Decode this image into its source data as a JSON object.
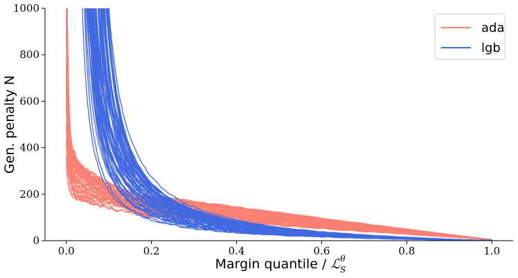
{
  "chart_data": {
    "type": "line",
    "xlabel": "Margin quantile / ",
    "xlabel_math": "ℒ",
    "xlabel_sub": "S",
    "xlabel_sup": "θ",
    "ylabel": "Gen. penalty N",
    "xlim": [
      -0.05,
      1.05
    ],
    "ylim": [
      0,
      1000
    ],
    "x_ticks": [
      0.0,
      0.2,
      0.4,
      0.6,
      0.8,
      1.0
    ],
    "x_tick_labels": [
      "0.0",
      "0.2",
      "0.4",
      "0.6",
      "0.8",
      "1.0"
    ],
    "y_ticks": [
      0,
      200,
      400,
      600,
      800,
      1000
    ],
    "y_tick_labels": [
      "0",
      "200",
      "400",
      "600",
      "800",
      "1000"
    ],
    "grid": false,
    "legend_position": "top-right",
    "series": [
      {
        "name": "ada",
        "color": "#fa8072",
        "num_curves": 60,
        "representative_curves": [
          {
            "x": [
              0.0,
              0.003,
              0.005,
              0.01,
              0.02,
              0.05,
              0.1,
              0.2,
              0.3,
              0.4,
              0.6,
              0.8,
              1.0
            ],
            "y": [
              1000,
              600,
              400,
              300,
              260,
              220,
              190,
              140,
              110,
              90,
              60,
              30,
              5
            ]
          },
          {
            "x": [
              0.0,
              0.005,
              0.01,
              0.03,
              0.06,
              0.1,
              0.15,
              0.2,
              0.3,
              0.4,
              0.6,
              0.8,
              1.0
            ],
            "y": [
              170,
              160,
              150,
              140,
              130,
              120,
              110,
              100,
              85,
              70,
              50,
              28,
              5
            ]
          },
          {
            "x": [
              0.0,
              0.003,
              0.006,
              0.01,
              0.03,
              0.06,
              0.1,
              0.15,
              0.2,
              0.3,
              0.4,
              0.6,
              0.8,
              1.0
            ],
            "y": [
              1000,
              800,
              500,
              380,
              320,
              290,
              260,
              220,
              180,
              150,
              120,
              80,
              40,
              5
            ]
          }
        ]
      },
      {
        "name": "lgb",
        "color": "#4169e1",
        "num_curves": 60,
        "representative_curves": [
          {
            "x": [
              0.03,
              0.04,
              0.05,
              0.06,
              0.08,
              0.1,
              0.12,
              0.15,
              0.2,
              0.3,
              0.4,
              0.6,
              0.8,
              1.0
            ],
            "y": [
              1000,
              850,
              650,
              500,
              350,
              250,
              180,
              120,
              80,
              50,
              30,
              15,
              8,
              3
            ]
          },
          {
            "x": [
              0.07,
              0.075,
              0.08,
              0.09,
              0.1,
              0.11,
              0.13,
              0.15,
              0.2,
              0.3,
              0.4,
              0.6,
              0.8,
              1.0
            ],
            "y": [
              1000,
              800,
              600,
              420,
              300,
              220,
              150,
              100,
              60,
              35,
              22,
              10,
              5,
              2
            ]
          }
        ]
      }
    ]
  }
}
